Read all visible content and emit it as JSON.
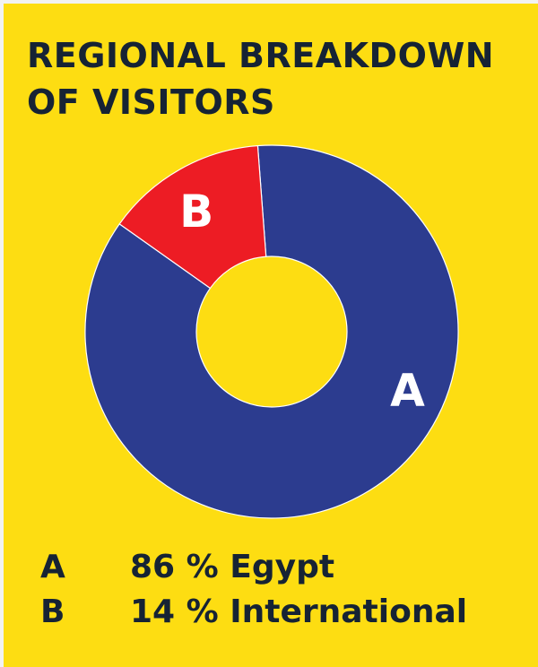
{
  "title_lines": [
    "REGIONAL BREAKDOWN",
    "OF VISITORS"
  ],
  "colors": {
    "background": "#fddd12",
    "A": "#2c3c8f",
    "B": "#ed1c24",
    "label": "#ffffff",
    "text": "#162334"
  },
  "chart_data": {
    "type": "pie",
    "title": "REGIONAL BREAKDOWN OF VISITORS",
    "donut": true,
    "slices": [
      {
        "key": "A",
        "label": "Egypt",
        "value": 86,
        "color": "#2c3c8f"
      },
      {
        "key": "B",
        "label": "International",
        "value": 14,
        "color": "#ed1c24"
      }
    ],
    "legend": [
      {
        "key": "A",
        "text": "86 % Egypt"
      },
      {
        "key": "B",
        "text": "14 % International"
      }
    ],
    "legend_position": "bottom"
  }
}
